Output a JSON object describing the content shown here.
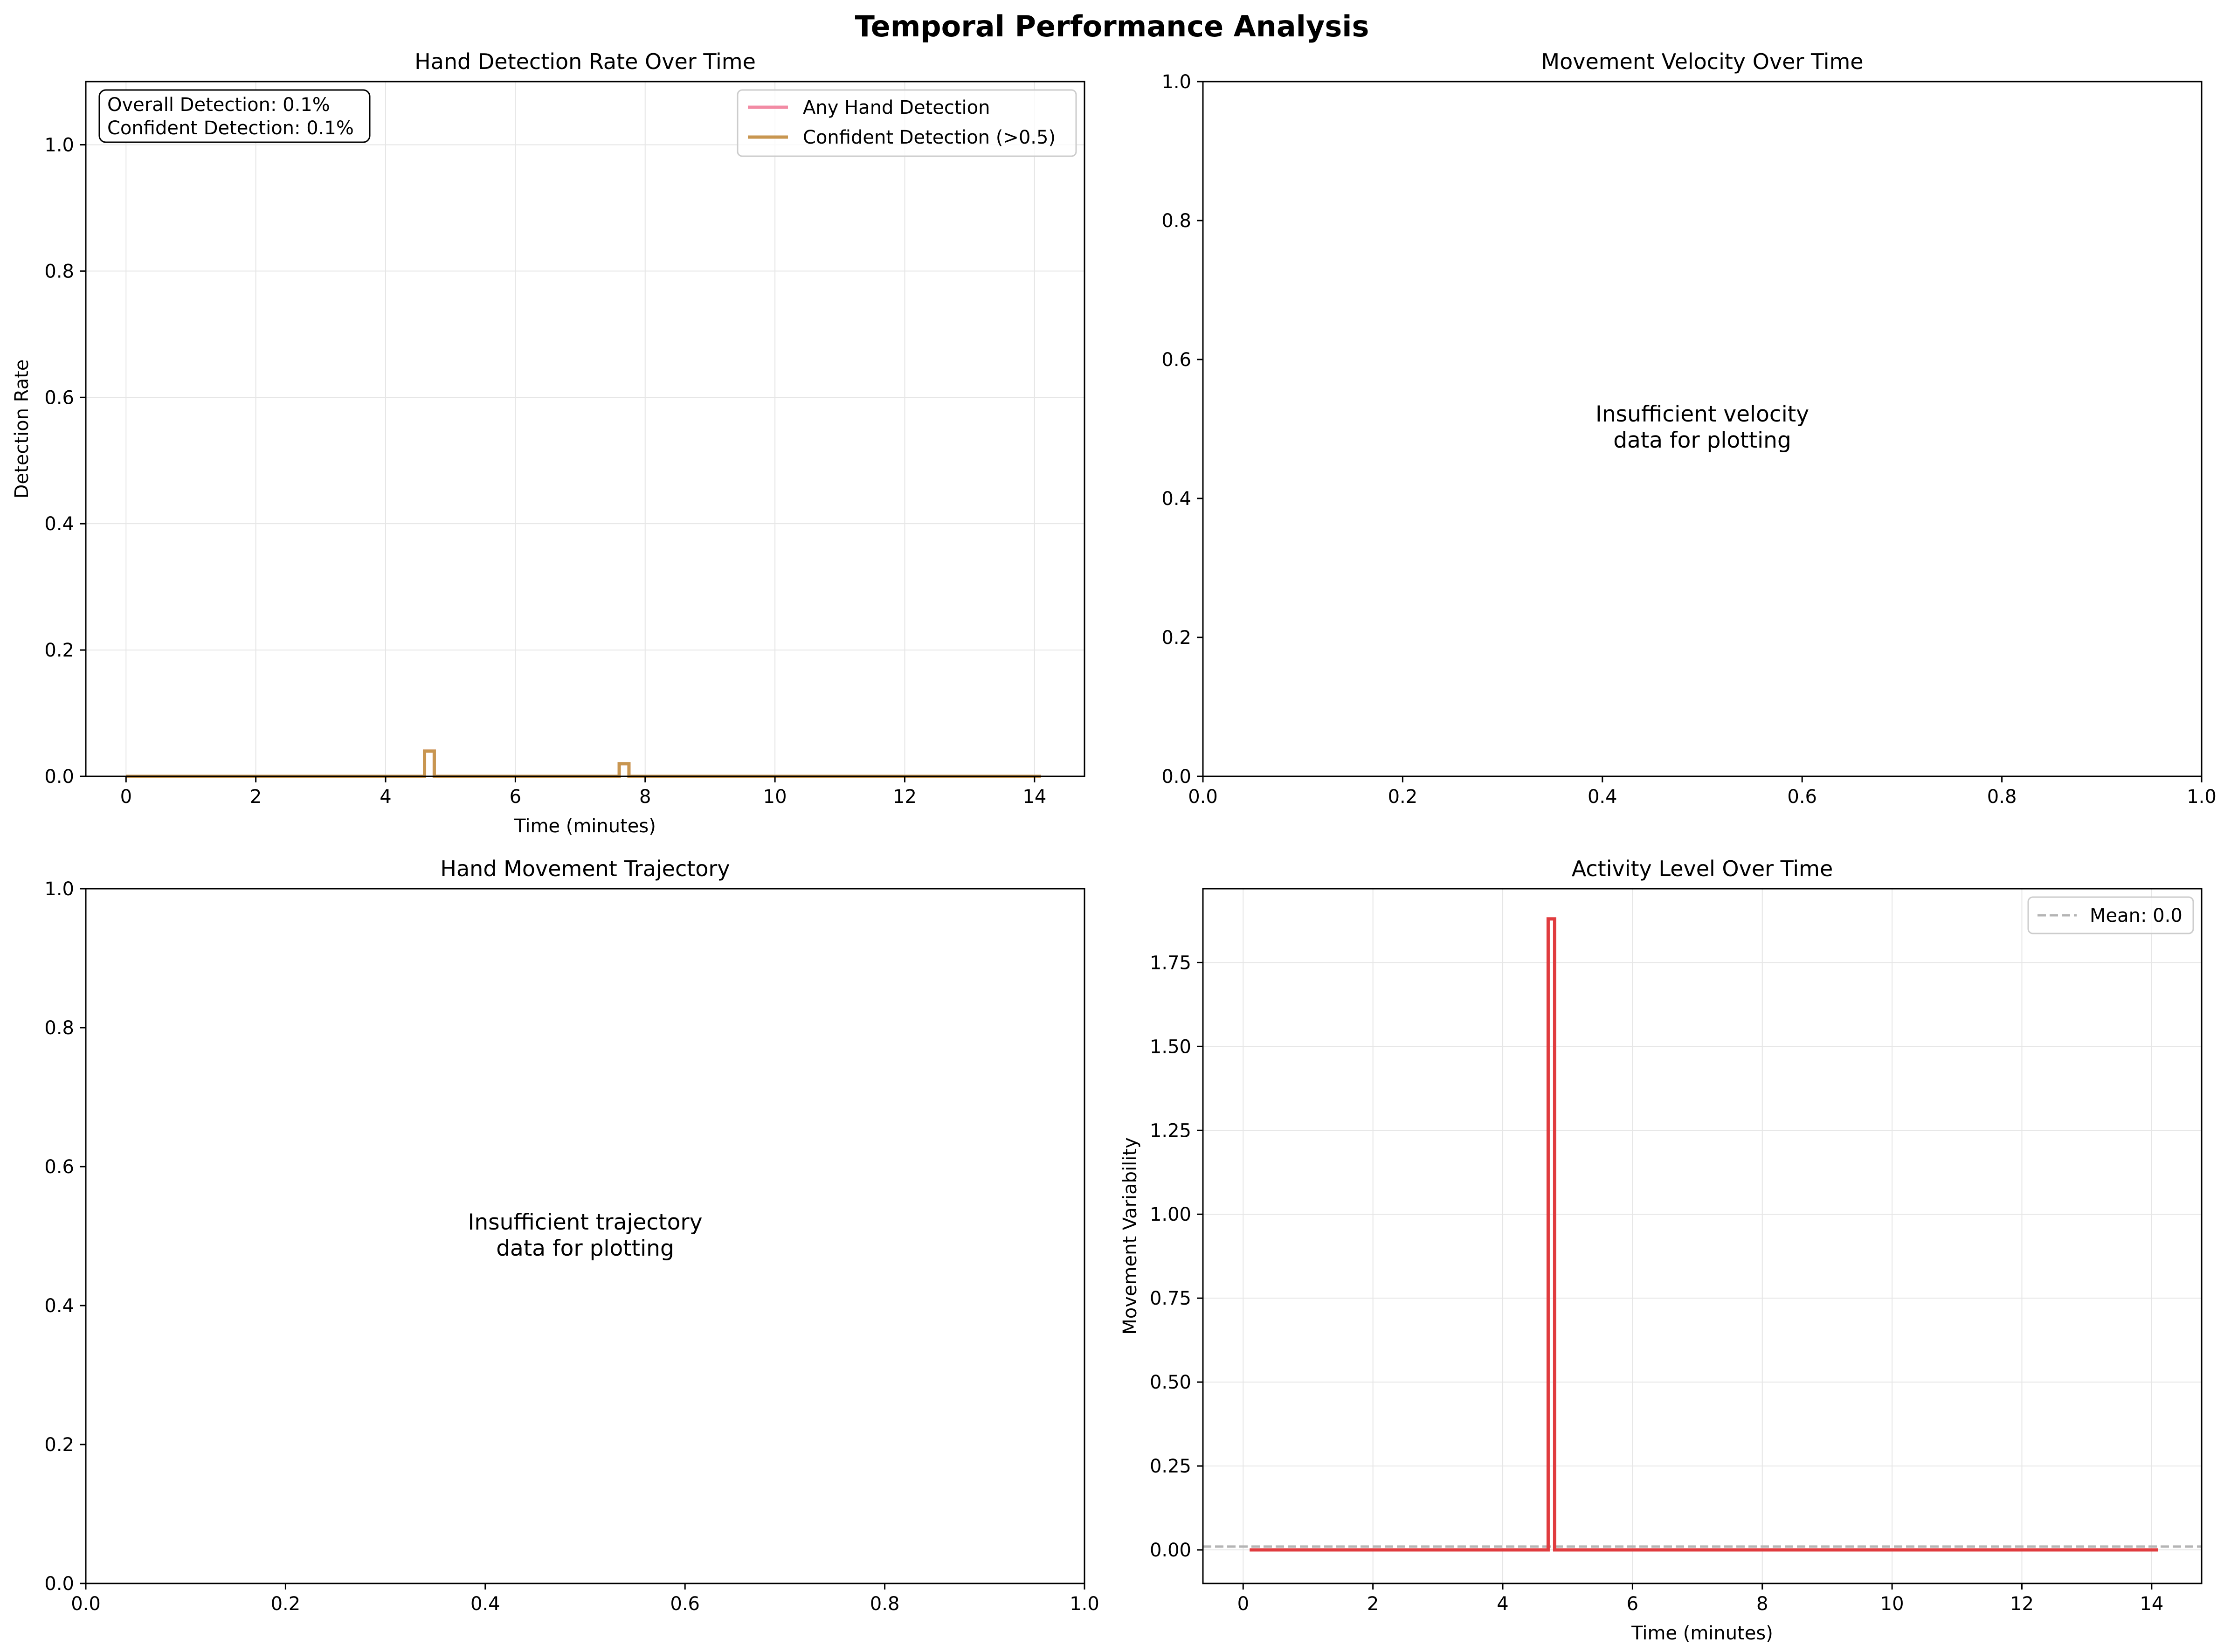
{
  "figure_title": "Temporal Performance Analysis",
  "colors": {
    "grid": "#e6e6e6",
    "any_hand": "#f28ba4",
    "confident": "#c89650",
    "activity": "#e03c3f",
    "mean_line": "#b4b4b4"
  },
  "chart_data": [
    {
      "id": "detection",
      "type": "line",
      "title": "Hand Detection Rate Over Time",
      "xlabel": "Time (minutes)",
      "ylabel": "Detection Rate",
      "xlim": [
        -0.62,
        14.77
      ],
      "ylim": [
        0,
        1.1
      ],
      "xticks": [
        0,
        2,
        4,
        6,
        8,
        10,
        12,
        14
      ],
      "yticks": [
        0.0,
        0.2,
        0.4,
        0.6,
        0.8,
        1.0
      ],
      "grid": true,
      "legend_position": "top-right",
      "series": [
        {
          "name": "Any Hand Detection",
          "color_key": "any_hand",
          "x": [
            0.0,
            4.6,
            4.6,
            4.75,
            4.75,
            7.6,
            7.6,
            7.75,
            7.75,
            14.1
          ],
          "y": [
            0,
            0,
            0.04,
            0.04,
            0,
            0,
            0.02,
            0.02,
            0,
            0
          ]
        },
        {
          "name": "Confident Detection (>0.5)",
          "color_key": "confident",
          "x": [
            0.0,
            4.6,
            4.6,
            4.75,
            4.75,
            7.6,
            7.6,
            7.75,
            7.75,
            14.1
          ],
          "y": [
            0,
            0,
            0.04,
            0.04,
            0,
            0,
            0.02,
            0.02,
            0,
            0
          ]
        }
      ],
      "annotation": [
        "Overall Detection: 0.1%",
        "Confident Detection: 0.1%"
      ]
    },
    {
      "id": "velocity",
      "type": "line",
      "title": "Movement Velocity Over Time",
      "xlim": [
        0,
        1
      ],
      "ylim": [
        0,
        1
      ],
      "xticks": [
        0.0,
        0.2,
        0.4,
        0.6,
        0.8,
        1.0
      ],
      "yticks": [
        0.0,
        0.2,
        0.4,
        0.6,
        0.8,
        1.0
      ],
      "grid": false,
      "series": [],
      "message": [
        "Insufficient velocity",
        "data for plotting"
      ]
    },
    {
      "id": "trajectory",
      "type": "scatter",
      "title": "Hand Movement Trajectory",
      "xlim": [
        0,
        1
      ],
      "ylim": [
        0,
        1
      ],
      "xticks": [
        0.0,
        0.2,
        0.4,
        0.6,
        0.8,
        1.0
      ],
      "yticks": [
        0.0,
        0.2,
        0.4,
        0.6,
        0.8,
        1.0
      ],
      "grid": false,
      "series": [],
      "message": [
        "Insufficient trajectory",
        "data for plotting"
      ]
    },
    {
      "id": "activity",
      "type": "line",
      "title": "Activity Level Over Time",
      "xlabel": "Time (minutes)",
      "ylabel": "Movement Variability",
      "xlim": [
        -0.62,
        14.77
      ],
      "ylim": [
        -0.1,
        1.97
      ],
      "xticks": [
        0,
        2,
        4,
        6,
        8,
        10,
        12,
        14
      ],
      "yticks": [
        0.0,
        0.25,
        0.5,
        0.75,
        1.0,
        1.25,
        1.5,
        1.75
      ],
      "grid": true,
      "legend_position": "top-right",
      "series": [
        {
          "name": "",
          "color_key": "activity",
          "x": [
            0.1,
            4.7,
            4.7,
            4.8,
            4.8,
            14.1
          ],
          "y": [
            0,
            0,
            1.88,
            1.88,
            0,
            0
          ]
        }
      ],
      "mean_line": {
        "name": "Mean: 0.0",
        "value": 0.01
      }
    }
  ]
}
